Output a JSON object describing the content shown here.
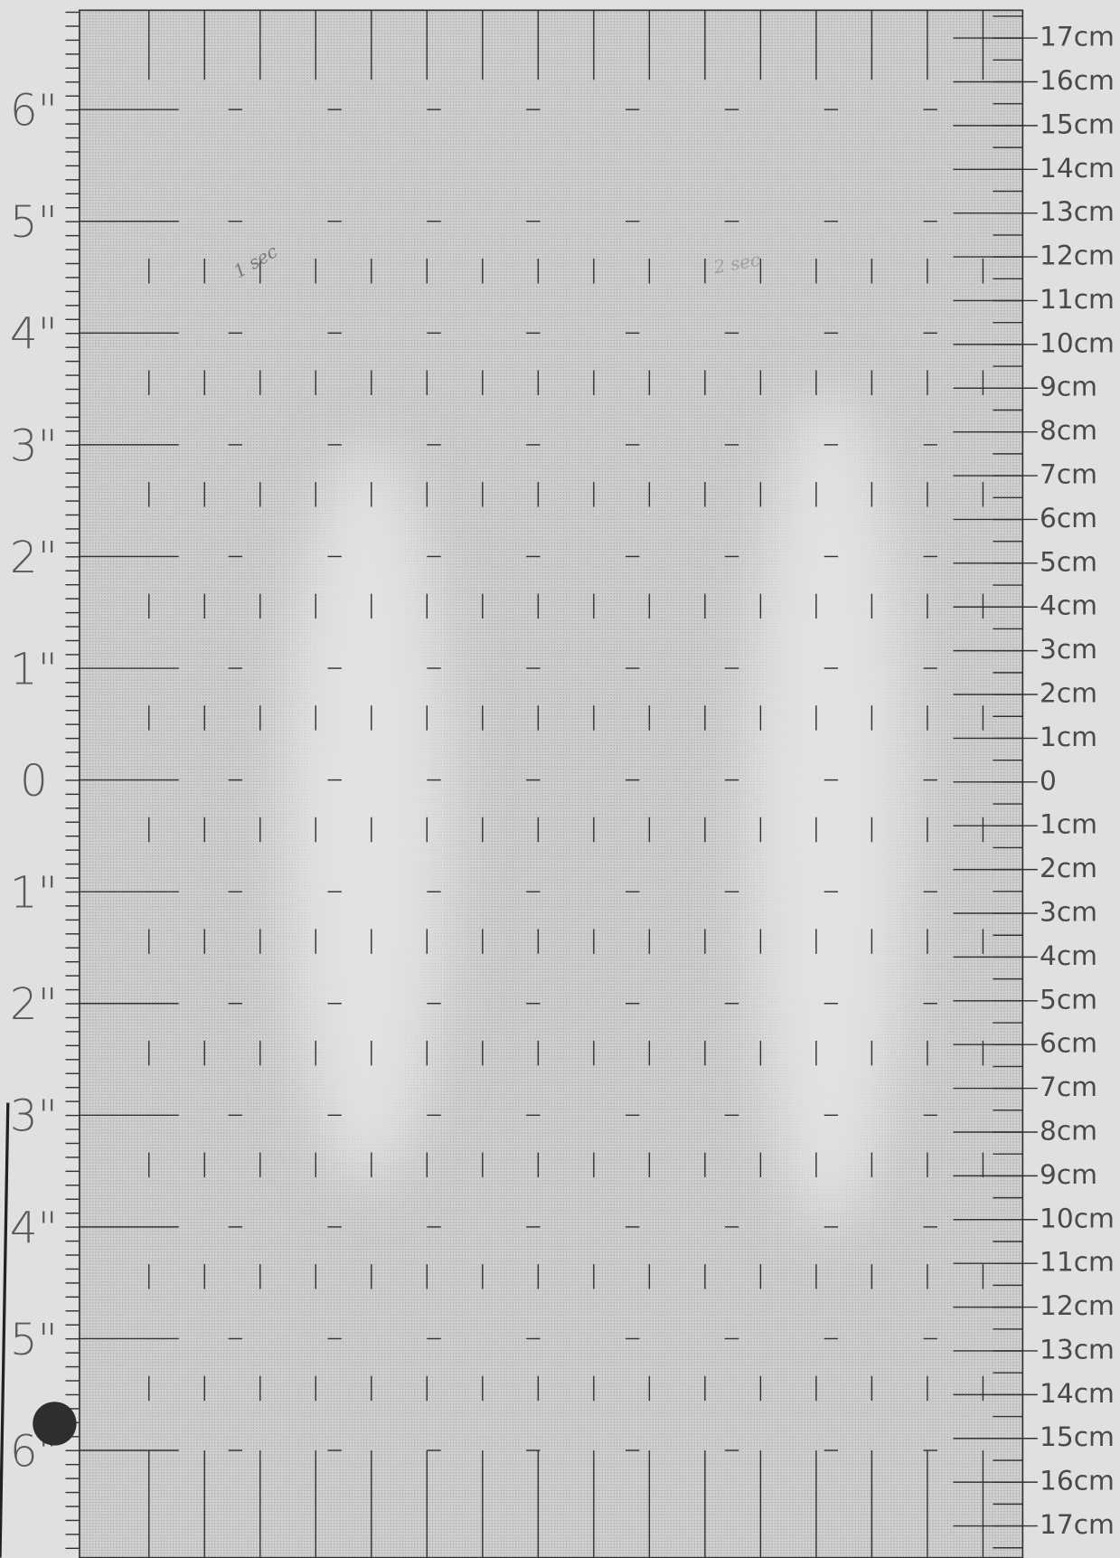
{
  "left_ruler": {
    "labels": [
      "6\"",
      "5\"",
      "4\"",
      "3\"",
      "2\"",
      "1\"",
      "0",
      "1\"",
      "2\"",
      "3\"",
      "4\"",
      "5\"",
      "6\""
    ]
  },
  "right_ruler": {
    "labels": [
      "17cm",
      "16cm",
      "15cm",
      "14cm",
      "13cm",
      "12cm",
      "11cm",
      "10cm",
      "9cm",
      "8cm",
      "7cm",
      "6cm",
      "5cm",
      "4cm",
      "3cm",
      "2cm",
      "1cm",
      "0",
      "1cm",
      "2cm",
      "3cm",
      "4cm",
      "5cm",
      "6cm",
      "7cm",
      "8cm",
      "9cm",
      "10cm",
      "11cm",
      "12cm",
      "13cm",
      "14cm",
      "15cm",
      "16cm",
      "17cm"
    ]
  },
  "notes": [
    {
      "text": "1 sec"
    },
    {
      "text": "2 sec"
    }
  ]
}
